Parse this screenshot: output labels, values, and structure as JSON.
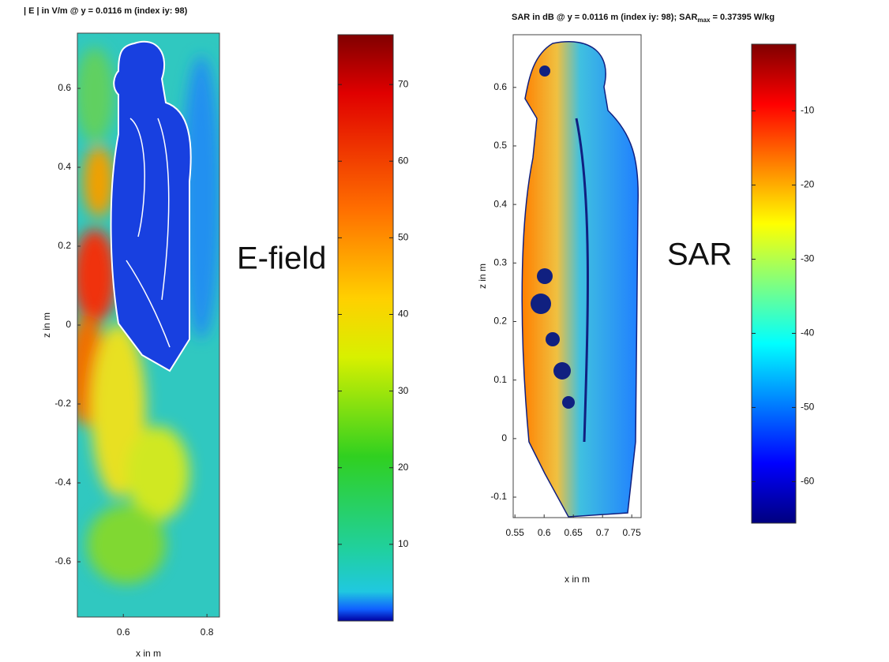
{
  "chart_data": [
    {
      "type": "heatmap",
      "title": "| E | in V/m @ y = 0.0116 m (index iy: 98)",
      "xlabel": "x in m",
      "ylabel": "z in m",
      "annotation": "E-field",
      "xlim": [
        0.49,
        0.83
      ],
      "ylim": [
        -0.74,
        0.74
      ],
      "xticks": [
        0.6,
        0.8
      ],
      "yticks": [
        -0.6,
        -0.4,
        -0.2,
        0,
        0.2,
        0.4,
        0.6
      ],
      "colorbar": {
        "clim": [
          0,
          76.5
        ],
        "ticks": [
          10,
          20,
          30,
          40,
          50,
          60,
          70
        ]
      }
    },
    {
      "type": "heatmap",
      "title": "SAR    in dB @ y = 0.0116 m (index iy: 98); SAR",
      "title_sub": "max",
      "title_end": " = 0.37395 W/kg",
      "xlabel": "x in m",
      "ylabel": "z in m",
      "annotation": "SAR",
      "xlim": [
        0.547,
        0.766
      ],
      "ylim": [
        -0.135,
        0.69
      ],
      "xticks": [
        0.55,
        0.6,
        0.65,
        0.7,
        0.75
      ],
      "yticks": [
        -0.1,
        0,
        0.1,
        0.2,
        0.3,
        0.4,
        0.5,
        0.6
      ],
      "colorbar": {
        "clim": [
          -65.6,
          -1
        ],
        "ticks": [
          -60,
          -50,
          -40,
          -30,
          -20,
          -10
        ]
      }
    }
  ]
}
